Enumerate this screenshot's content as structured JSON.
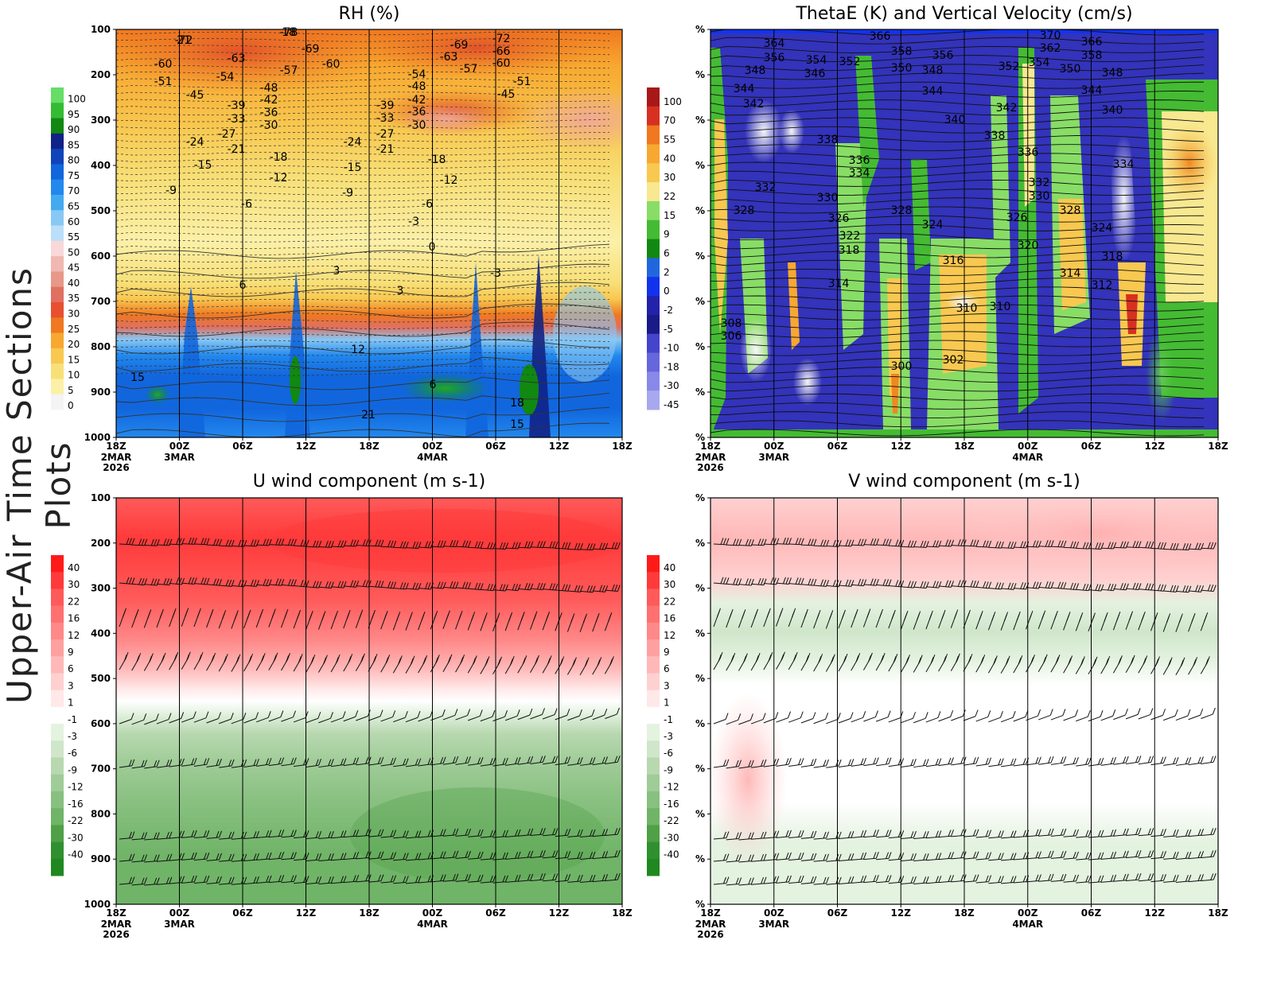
{
  "side_title": "Upper-Air Time Sections Plots",
  "colors": {
    "frame": "#000000",
    "contour": "#111111"
  },
  "chart_data": [
    {
      "type": "heatmap",
      "title": "RH (%)",
      "x_ticks": [
        "18Z",
        "00Z",
        "06Z",
        "12Z",
        "18Z",
        "00Z",
        "06Z",
        "12Z",
        "18Z"
      ],
      "x_date_labels": [
        {
          "index": 0,
          "lines": [
            "2MAR",
            "2026"
          ]
        },
        {
          "index": 1,
          "lines": [
            "3MAR"
          ]
        },
        {
          "index": 5,
          "lines": [
            "4MAR"
          ]
        }
      ],
      "y_ticks": [
        "100",
        "200",
        "300",
        "400",
        "500",
        "600",
        "700",
        "800",
        "900",
        "1000"
      ],
      "colorbar": {
        "labels": [
          "100",
          "95",
          "90",
          "85",
          "80",
          "75",
          "70",
          "65",
          "60",
          "55",
          "50",
          "45",
          "40",
          "35",
          "30",
          "25",
          "20",
          "15",
          "10",
          "5",
          "0"
        ],
        "colors": [
          "#66dd66",
          "#33bb33",
          "#118811",
          "#112288",
          "#1144bb",
          "#1166dd",
          "#2288ee",
          "#44aaf0",
          "#88c8f4",
          "#bbdff8",
          "#f8d8d8",
          "#f0b8b0",
          "#e89888",
          "#e07060",
          "#e85030",
          "#f07820",
          "#f8a830",
          "#f8c850",
          "#f8e078",
          "#fcf0a8",
          "#f4f4f4"
        ]
      },
      "contour_labels": [
        "-78",
        "-72",
        "-69",
        "-60",
        "-63",
        "-57",
        "-51",
        "-54",
        "-60",
        "-45",
        "-48",
        "-42",
        "-39",
        "-33",
        "-36",
        "-30",
        "-27",
        "-24",
        "-21",
        "-18",
        "-15",
        "-12",
        "-9",
        "-6",
        "-3",
        "0",
        "3",
        "6",
        "12",
        "15",
        "18",
        "21",
        "-72",
        "-69",
        "-66",
        "-63",
        "-60",
        "-57",
        "-54",
        "-51",
        "-48",
        "-45",
        "-42",
        "-39",
        "-36",
        "-33",
        "-30",
        "-27",
        "-24",
        "-21",
        "-18",
        "-15",
        "-12",
        "-9",
        "-6",
        "-3",
        "3",
        "6",
        "15",
        "18",
        "21"
      ]
    },
    {
      "type": "heatmap",
      "title": "ThetaE (K) and Vertical Velocity (cm/s)",
      "x_ticks": [
        "18Z",
        "00Z",
        "06Z",
        "12Z",
        "18Z",
        "00Z",
        "06Z",
        "12Z",
        "18Z"
      ],
      "x_date_labels": [
        {
          "index": 0,
          "lines": [
            "2MAR",
            "2026"
          ]
        },
        {
          "index": 1,
          "lines": [
            "3MAR"
          ]
        },
        {
          "index": 5,
          "lines": [
            "4MAR"
          ]
        }
      ],
      "y_ticks": [
        "%",
        "%",
        "%",
        "%",
        "%",
        "%",
        "%",
        "%",
        "%",
        "%"
      ],
      "colorbar": {
        "labels": [
          "100",
          "70",
          "55",
          "40",
          "30",
          "22",
          "15",
          "9",
          "6",
          "2",
          "0",
          "-2",
          "-5",
          "-10",
          "-18",
          "-30",
          "-45"
        ],
        "colors": [
          "#a81818",
          "#d83020",
          "#f07820",
          "#f8a830",
          "#f8c850",
          "#f8e890",
          "#88dd66",
          "#44bb33",
          "#118811",
          "#2266dd",
          "#1133ee",
          "#2222aa",
          "#1a1a88",
          "#4444cc",
          "#6666dd",
          "#8888e8",
          "#a8a8f0"
        ]
      },
      "contour_labels": [
        "366",
        "370",
        "364",
        "356",
        "354",
        "352",
        "358",
        "356",
        "362",
        "366",
        "358",
        "348",
        "346",
        "350",
        "348",
        "352",
        "354",
        "350",
        "348",
        "344",
        "344",
        "344",
        "342",
        "342",
        "340",
        "340",
        "338",
        "338",
        "336",
        "336",
        "334",
        "334",
        "332",
        "332",
        "330",
        "330",
        "328",
        "328",
        "328",
        "326",
        "326",
        "324",
        "324",
        "322",
        "320",
        "318",
        "318",
        "316",
        "314",
        "314",
        "312",
        "310",
        "310",
        "308",
        "306",
        "302",
        "300"
      ]
    },
    {
      "type": "heatmap",
      "title": "U wind component (m s-1)",
      "x_ticks": [
        "18Z",
        "00Z",
        "06Z",
        "12Z",
        "18Z",
        "00Z",
        "06Z",
        "12Z",
        "18Z"
      ],
      "x_date_labels": [
        {
          "index": 0,
          "lines": [
            "2MAR",
            "2026"
          ]
        },
        {
          "index": 1,
          "lines": [
            "3MAR"
          ]
        },
        {
          "index": 5,
          "lines": [
            "4MAR"
          ]
        }
      ],
      "y_ticks": [
        "100",
        "200",
        "300",
        "400",
        "500",
        "600",
        "700",
        "800",
        "900",
        "1000"
      ],
      "colorbar": {
        "labels": [
          "40",
          "30",
          "22",
          "16",
          "12",
          "9",
          "6",
          "3",
          "1",
          "-1",
          "-3",
          "-6",
          "-9",
          "-12",
          "-16",
          "-22",
          "-30",
          "-40"
        ],
        "colors": [
          "#ff1a1a",
          "#ff3a3a",
          "#ff5a5a",
          "#ff7070",
          "#ff8888",
          "#ffa0a0",
          "#ffb8b8",
          "#ffd0d0",
          "#ffe8e8",
          "#ffffff",
          "#e4f2e0",
          "#cfe6ca",
          "#b8d8b0",
          "#a0cc98",
          "#88c080",
          "#70b468",
          "#50a048",
          "#309030",
          "#208820"
        ]
      }
    },
    {
      "type": "heatmap",
      "title": "V wind component (m s-1)",
      "x_ticks": [
        "18Z",
        "00Z",
        "06Z",
        "12Z",
        "18Z",
        "00Z",
        "06Z",
        "12Z",
        "18Z"
      ],
      "x_date_labels": [
        {
          "index": 0,
          "lines": [
            "2MAR",
            "2026"
          ]
        },
        {
          "index": 1,
          "lines": [
            "3MAR"
          ]
        },
        {
          "index": 5,
          "lines": [
            "4MAR"
          ]
        }
      ],
      "y_ticks": [
        "%",
        "%",
        "%",
        "%",
        "%",
        "%",
        "%",
        "%",
        "%",
        "%"
      ],
      "colorbar": {
        "labels": [
          "40",
          "30",
          "22",
          "16",
          "12",
          "9",
          "6",
          "3",
          "1",
          "-1",
          "-3",
          "-6",
          "-9",
          "-12",
          "-16",
          "-22",
          "-30",
          "-40"
        ],
        "colors": [
          "#ff1a1a",
          "#ff3a3a",
          "#ff5a5a",
          "#ff7070",
          "#ff8888",
          "#ffa0a0",
          "#ffb8b8",
          "#ffd0d0",
          "#ffe8e8",
          "#ffffff",
          "#e4f2e0",
          "#cfe6ca",
          "#b8d8b0",
          "#a0cc98",
          "#88c080",
          "#70b468",
          "#50a048",
          "#309030",
          "#208820"
        ]
      }
    }
  ]
}
